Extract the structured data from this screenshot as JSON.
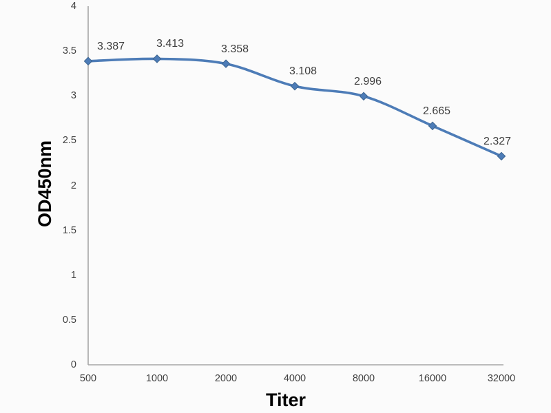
{
  "chart_data": {
    "type": "line",
    "title": "",
    "xlabel": "Titer",
    "ylabel": "OD450nm",
    "categories": [
      "500",
      "1000",
      "2000",
      "4000",
      "8000",
      "16000",
      "32000"
    ],
    "series": [
      {
        "name": "OD450nm",
        "values": [
          3.387,
          3.413,
          3.358,
          3.108,
          2.996,
          2.665,
          2.327
        ]
      }
    ],
    "data_labels": [
      "3.387",
      "3.413",
      "3.358",
      "3.108",
      "2.996",
      "2.665",
      "2.327"
    ],
    "ylim": [
      0,
      4
    ],
    "ytick_labels": [
      "0",
      "0.5",
      "1",
      "1.5",
      "2",
      "2.5",
      "3",
      "3.5",
      "4"
    ],
    "ytick_values": [
      0,
      0.5,
      1,
      1.5,
      2,
      2.5,
      3,
      3.5,
      4
    ],
    "grid": false,
    "legend": "none",
    "smooth": true,
    "marker": "diamond",
    "colors": {
      "line": "#4d7cb7",
      "marker_fill": "#4d7cb7",
      "marker_stroke": "#3c648f",
      "axis": "#a6a6a6",
      "tick_text": "#404040",
      "data_label_text": "#3f3f3f",
      "axis_title_text": "#000000",
      "background": "#fbfbfb"
    },
    "label_dx": [
      33,
      19,
      13,
      12,
      6,
      6,
      -6
    ]
  }
}
